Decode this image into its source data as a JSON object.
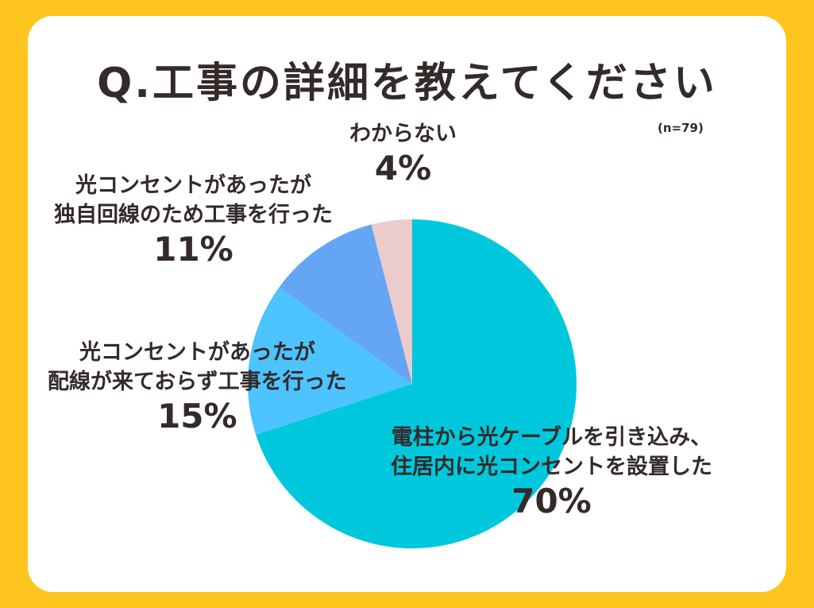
{
  "title": "Q.工事の詳細を教えてください",
  "sample_size": "(n=79)",
  "colors": {
    "background": "#FDC51E",
    "card": "#FFFFFF",
    "text": "#332A2A",
    "slice_70": "#00C8DC",
    "slice_15": "#4DC3FF",
    "slice_11": "#64A5F5",
    "slice_4": "#EBCBCB"
  },
  "labels": {
    "s70": {
      "line1": "電柱から光ケーブルを引き込み、",
      "line2": "住居内に光コンセントを設置した",
      "pct": "70%"
    },
    "s15": {
      "line1": "光コンセントがあったが",
      "line2": "配線が来ておらず工事を行った",
      "pct": "15%"
    },
    "s11": {
      "line1": "光コンセントがあったが",
      "line2": "独自回線のため工事を行った",
      "pct": "11%"
    },
    "s4": {
      "line1": "わからない",
      "pct": "4%"
    }
  },
  "chart_data": {
    "type": "pie",
    "title": "Q.工事の詳細を教えてください",
    "subtitle": "(n=79)",
    "categories": [
      "電柱から光ケーブルを引き込み、住居内に光コンセントを設置した",
      "光コンセントがあったが配線が来ておらず工事を行った",
      "光コンセントがあったが独自回線のため工事を行った",
      "わからない"
    ],
    "values": [
      70,
      15,
      11,
      4
    ],
    "unit": "%",
    "colors": [
      "#00C8DC",
      "#4DC3FF",
      "#64A5F5",
      "#EBCBCB"
    ],
    "start_angle": "12 o'clock",
    "direction": "clockwise",
    "legend": "none (direct labels)"
  }
}
